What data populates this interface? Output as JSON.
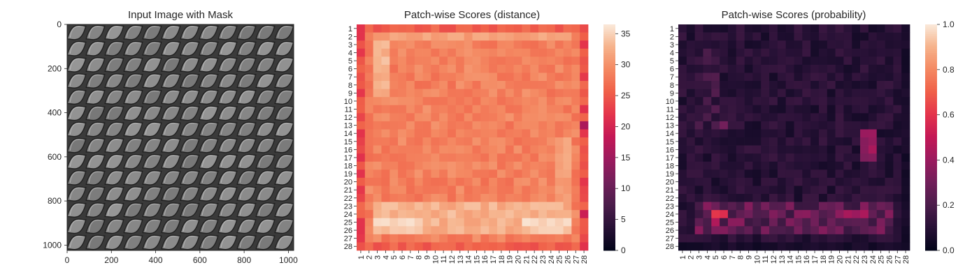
{
  "chart_data": [
    {
      "type": "image",
      "title": "Input Image with Mask",
      "xticks": [
        "0",
        "200",
        "400",
        "600",
        "800",
        "1000"
      ],
      "yticks": [
        "0",
        "200",
        "400",
        "600",
        "800",
        "1000"
      ],
      "xlim": [
        0,
        1024
      ],
      "ylim": [
        1024,
        0
      ],
      "colormap": "gray",
      "content": "woven metal mesh texture, diagonal leaf-shaped strands, 12 columns x 14 rows"
    },
    {
      "type": "heatmap",
      "title": "Patch-wise Scores (distance)",
      "rows": 28,
      "cols": 28,
      "xticklabels": [
        "1",
        "2",
        "3",
        "4",
        "5",
        "6",
        "7",
        "8",
        "9",
        "10",
        "11",
        "12",
        "13",
        "14",
        "15",
        "16",
        "17",
        "18",
        "19",
        "20",
        "21",
        "22",
        "23",
        "24",
        "25",
        "26",
        "27",
        "28"
      ],
      "yticklabels": [
        "1",
        "2",
        "3",
        "4",
        "5",
        "6",
        "7",
        "8",
        "9",
        "10",
        "11",
        "12",
        "13",
        "14",
        "15",
        "16",
        "17",
        "18",
        "19",
        "20",
        "21",
        "22",
        "23",
        "24",
        "25",
        "26",
        "27",
        "28"
      ],
      "colormap": "rocket",
      "vmin": 0,
      "vmax": 36.5,
      "colorbar_ticks": [
        "0",
        "5",
        "10",
        "15",
        "20",
        "25",
        "30",
        "35"
      ],
      "colorbar_values": [
        0,
        5,
        10,
        15,
        20,
        25,
        30,
        35
      ]
    },
    {
      "type": "heatmap",
      "title": "Patch-wise Scores (probability)",
      "rows": 28,
      "cols": 28,
      "xticklabels": [
        "1",
        "2",
        "3",
        "4",
        "5",
        "6",
        "7",
        "8",
        "9",
        "10",
        "11",
        "12",
        "13",
        "14",
        "15",
        "16",
        "17",
        "18",
        "19",
        "20",
        "21",
        "22",
        "23",
        "24",
        "25",
        "26",
        "27",
        "28"
      ],
      "yticklabels": [
        "1",
        "2",
        "3",
        "4",
        "5",
        "6",
        "7",
        "8",
        "9",
        "10",
        "11",
        "12",
        "13",
        "14",
        "15",
        "16",
        "17",
        "18",
        "19",
        "20",
        "21",
        "22",
        "23",
        "24",
        "25",
        "26",
        "27",
        "28"
      ],
      "colormap": "rocket",
      "vmin": 0,
      "vmax": 1.0,
      "colorbar_ticks": [
        "0.0",
        "0.2",
        "0.4",
        "0.6",
        "0.8",
        "1.0"
      ],
      "colorbar_values": [
        0,
        0.2,
        0.4,
        0.6,
        0.8,
        1.0
      ]
    }
  ]
}
